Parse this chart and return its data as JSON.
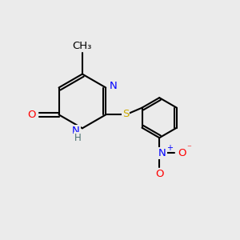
{
  "background_color": "#ebebeb",
  "atom_colors": {
    "C": "#000000",
    "N": "#0000ff",
    "O": "#ff0000",
    "S": "#ccaa00",
    "H": "#4a7070"
  },
  "bond_color": "#000000",
  "bond_width": 1.5,
  "dbo": 0.12,
  "figsize": [
    3.0,
    3.0
  ],
  "dpi": 100,
  "xlim": [
    0,
    10
  ],
  "ylim": [
    0,
    10
  ]
}
